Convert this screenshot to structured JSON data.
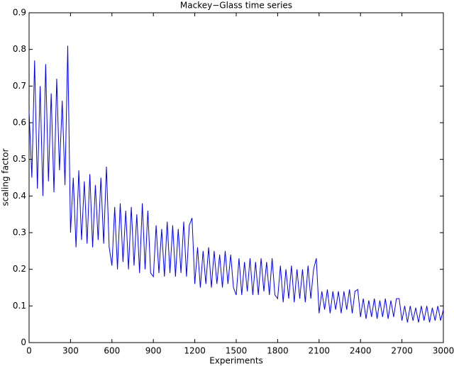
{
  "chart_data": {
    "type": "line",
    "title": "Mackey−Glass time series",
    "x_label": "Experiments",
    "y_label": "scaling factor",
    "x": [
      0,
      20,
      40,
      60,
      80,
      100,
      120,
      140,
      160,
      180,
      200,
      220,
      240,
      260,
      280,
      300,
      320,
      340,
      360,
      380,
      400,
      420,
      440,
      460,
      480,
      500,
      520,
      540,
      560,
      580,
      600,
      620,
      640,
      660,
      680,
      700,
      720,
      740,
      760,
      780,
      800,
      820,
      840,
      860,
      880,
      900,
      920,
      940,
      960,
      980,
      1000,
      1020,
      1040,
      1060,
      1080,
      1100,
      1120,
      1140,
      1160,
      1180,
      1200,
      1220,
      1240,
      1260,
      1280,
      1300,
      1320,
      1340,
      1360,
      1380,
      1400,
      1420,
      1440,
      1460,
      1480,
      1500,
      1520,
      1540,
      1560,
      1580,
      1600,
      1620,
      1640,
      1660,
      1680,
      1700,
      1720,
      1740,
      1760,
      1780,
      1800,
      1820,
      1840,
      1860,
      1880,
      1900,
      1920,
      1940,
      1960,
      1980,
      2000,
      2020,
      2040,
      2060,
      2080,
      2100,
      2120,
      2140,
      2160,
      2180,
      2200,
      2220,
      2240,
      2260,
      2280,
      2300,
      2320,
      2340,
      2360,
      2380,
      2400,
      2420,
      2440,
      2460,
      2480,
      2500,
      2520,
      2540,
      2560,
      2580,
      2600,
      2620,
      2640,
      2660,
      2680,
      2700,
      2720,
      2740,
      2760,
      2780,
      2800,
      2820,
      2840,
      2860,
      2880,
      2900,
      2920,
      2940,
      2960,
      2980,
      3000
    ],
    "series": [
      {
        "name": "scaling factor",
        "color": "#0000ff",
        "values": [
          0.63,
          0.45,
          0.77,
          0.42,
          0.7,
          0.4,
          0.76,
          0.44,
          0.68,
          0.41,
          0.72,
          0.47,
          0.66,
          0.43,
          0.81,
          0.3,
          0.45,
          0.26,
          0.47,
          0.28,
          0.44,
          0.27,
          0.46,
          0.26,
          0.43,
          0.28,
          0.45,
          0.27,
          0.48,
          0.26,
          0.21,
          0.37,
          0.2,
          0.38,
          0.22,
          0.36,
          0.2,
          0.37,
          0.21,
          0.35,
          0.19,
          0.38,
          0.2,
          0.36,
          0.19,
          0.18,
          0.32,
          0.19,
          0.31,
          0.18,
          0.33,
          0.19,
          0.32,
          0.18,
          0.31,
          0.19,
          0.33,
          0.18,
          0.32,
          0.34,
          0.16,
          0.26,
          0.15,
          0.25,
          0.16,
          0.26,
          0.15,
          0.25,
          0.16,
          0.24,
          0.15,
          0.25,
          0.16,
          0.24,
          0.15,
          0.13,
          0.23,
          0.13,
          0.22,
          0.14,
          0.23,
          0.13,
          0.22,
          0.13,
          0.23,
          0.14,
          0.22,
          0.13,
          0.23,
          0.13,
          0.12,
          0.21,
          0.11,
          0.2,
          0.12,
          0.21,
          0.11,
          0.2,
          0.12,
          0.2,
          0.11,
          0.21,
          0.12,
          0.2,
          0.23,
          0.08,
          0.14,
          0.09,
          0.145,
          0.08,
          0.14,
          0.09,
          0.14,
          0.08,
          0.14,
          0.09,
          0.145,
          0.08,
          0.14,
          0.145,
          0.07,
          0.12,
          0.065,
          0.115,
          0.07,
          0.12,
          0.065,
          0.115,
          0.07,
          0.12,
          0.065,
          0.115,
          0.07,
          0.12,
          0.12,
          0.06,
          0.1,
          0.055,
          0.1,
          0.06,
          0.095,
          0.055,
          0.1,
          0.06,
          0.1,
          0.055,
          0.095,
          0.06,
          0.1,
          0.06,
          0.09
        ]
      }
    ],
    "xlim": [
      0,
      3000
    ],
    "xticks": [
      0,
      300,
      600,
      900,
      1200,
      1500,
      1800,
      2100,
      2400,
      2700,
      3000
    ],
    "ylim": [
      0,
      0.9
    ],
    "yticks": [
      0,
      0.1,
      0.2,
      0.3,
      0.4,
      0.5,
      0.6,
      0.7,
      0.8,
      0.9
    ],
    "grid": false
  }
}
